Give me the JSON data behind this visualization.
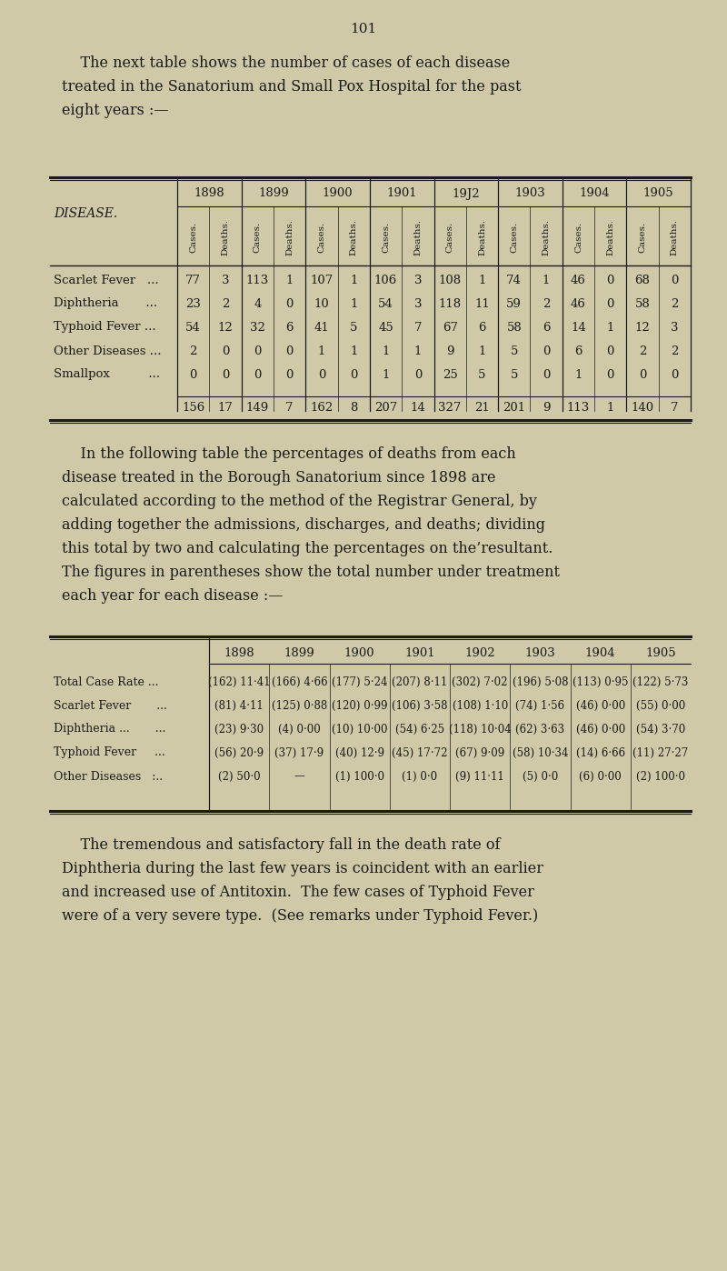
{
  "bg_color": "#cfc9a8",
  "page_num": "101",
  "intro_text_lines": [
    "    The next table shows the number of cases of each disease",
    "treated in the Sanatorium and Small Pox Hospital for the past",
    "eight years :—"
  ],
  "table1": {
    "years": [
      "1898",
      "1899",
      "1900",
      "1901",
      "19J2",
      "1903",
      "1904",
      "1905"
    ],
    "diseases": [
      "Scarlet Fever  ...",
      "Diphtheria       ...",
      "Typhoid Fever ...",
      "Other Diseases ...",
      "Smallpox          ..."
    ],
    "data": [
      [
        77,
        3,
        113,
        1,
        107,
        1,
        106,
        3,
        108,
        1,
        74,
        1,
        46,
        0,
        68,
        0
      ],
      [
        23,
        2,
        4,
        0,
        10,
        1,
        54,
        3,
        118,
        11,
        59,
        2,
        46,
        0,
        58,
        2
      ],
      [
        54,
        12,
        32,
        6,
        41,
        5,
        45,
        7,
        67,
        6,
        58,
        6,
        14,
        1,
        12,
        3
      ],
      [
        2,
        0,
        0,
        0,
        1,
        1,
        1,
        1,
        9,
        1,
        5,
        0,
        6,
        0,
        2,
        2
      ],
      [
        0,
        0,
        0,
        0,
        0,
        0,
        1,
        0,
        25,
        5,
        5,
        0,
        1,
        0,
        0,
        0
      ]
    ],
    "totals": [
      156,
      17,
      149,
      7,
      162,
      8,
      207,
      14,
      327,
      21,
      201,
      9,
      113,
      1,
      140,
      7
    ]
  },
  "middle_text_lines": [
    "    In the following table the percentages of deaths from each",
    "disease treated in the Borough Sanatorium since 1898 are",
    "calculated according to the method of the Registrar General, by",
    "adding together the admissions, discharges, and deaths; dividing",
    "this total by two and calculating the percentages on the’resultant.",
    "The figures in parentheses show the total number under treatment",
    "each year for each disease :—"
  ],
  "table2": {
    "years": [
      "1898",
      "1899",
      "1900",
      "1901",
      "1902",
      "1903",
      "1904",
      "1905"
    ],
    "row_labels": [
      "Total Case Rate ...",
      "Scarlet Fever       ...",
      "Diphtheria ...       ...",
      "Typhoid Fever     ...",
      "Other Diseases   :.."
    ],
    "data": [
      [
        "(162) 11·41",
        "(166) 4·66",
        "(177) 5·24",
        "(207) 8·11",
        "(302) 7·02",
        "(196) 5·08",
        "(113) 0·95",
        "(122) 5·73"
      ],
      [
        "(81) 4·11",
        "(125) 0·88",
        "(120) 0·99",
        "(106) 3·58",
        "(108) 1·10",
        "(74) 1·56",
        "(46) 0·00",
        "(55) 0·00"
      ],
      [
        "(23) 9·30",
        "(4) 0·00",
        "(10) 10·00",
        "(54) 6·25",
        "(118) 10·04",
        "(62) 3·63",
        "(46) 0·00",
        "(54) 3·70"
      ],
      [
        "(56) 20·9",
        "(37) 17·9",
        "(40) 12·9",
        "(45) 17·72",
        "(67) 9·09",
        "(58) 10·34",
        "(14) 6·66",
        "(11) 27·27"
      ],
      [
        "(2) 50·0",
        "—",
        "(1) 100·0",
        "(1) 0·0",
        "(9) 11·11",
        "(5) 0·0",
        "(6) 0·00",
        "(2) 100·0"
      ]
    ]
  },
  "footer_text_lines": [
    "    The tremendous and satisfactory fall in the death rate of",
    "Diphtheria during the last few years is coincident with an earlier",
    "and increased use of Antitoxin.  The few cases of Typhoid Fever",
    "were of a very severe type.  (See remarks under Typhoid Fever.)"
  ]
}
